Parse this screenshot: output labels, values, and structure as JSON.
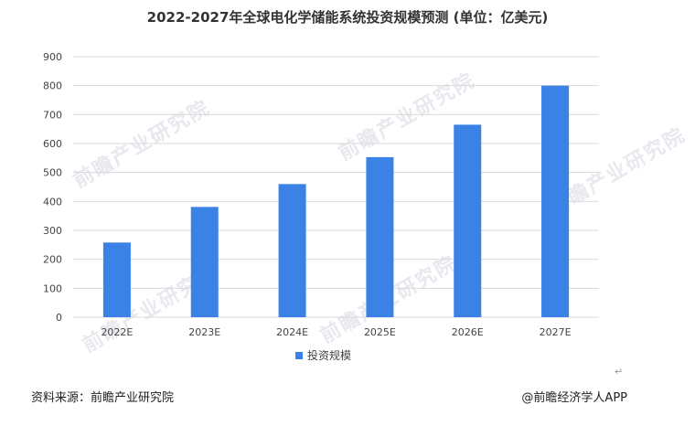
{
  "chart_data": {
    "type": "bar",
    "title": "2022-2027年全球电化学储能系统投资规模预测 (单位：亿美元)",
    "categories": [
      "2022E",
      "2023E",
      "2024E",
      "2025E",
      "2026E",
      "2027E"
    ],
    "series": [
      {
        "name": "投资规模",
        "values": [
          258,
          381,
          460,
          553,
          665,
          800
        ]
      }
    ],
    "yticks": [
      0,
      100,
      200,
      300,
      400,
      500,
      600,
      700,
      800,
      900
    ],
    "ylim": [
      0,
      900
    ],
    "xlabel": "",
    "ylabel": "",
    "grid": true,
    "legend_position": "bottom",
    "bar_color": "#3b82e6"
  },
  "footer": {
    "source": "资料来源：前瞻产业研究院",
    "credit": "@前瞻经济学人APP",
    "return_mark": "↵"
  },
  "watermark": {
    "text": "前瞻产业研究院"
  }
}
